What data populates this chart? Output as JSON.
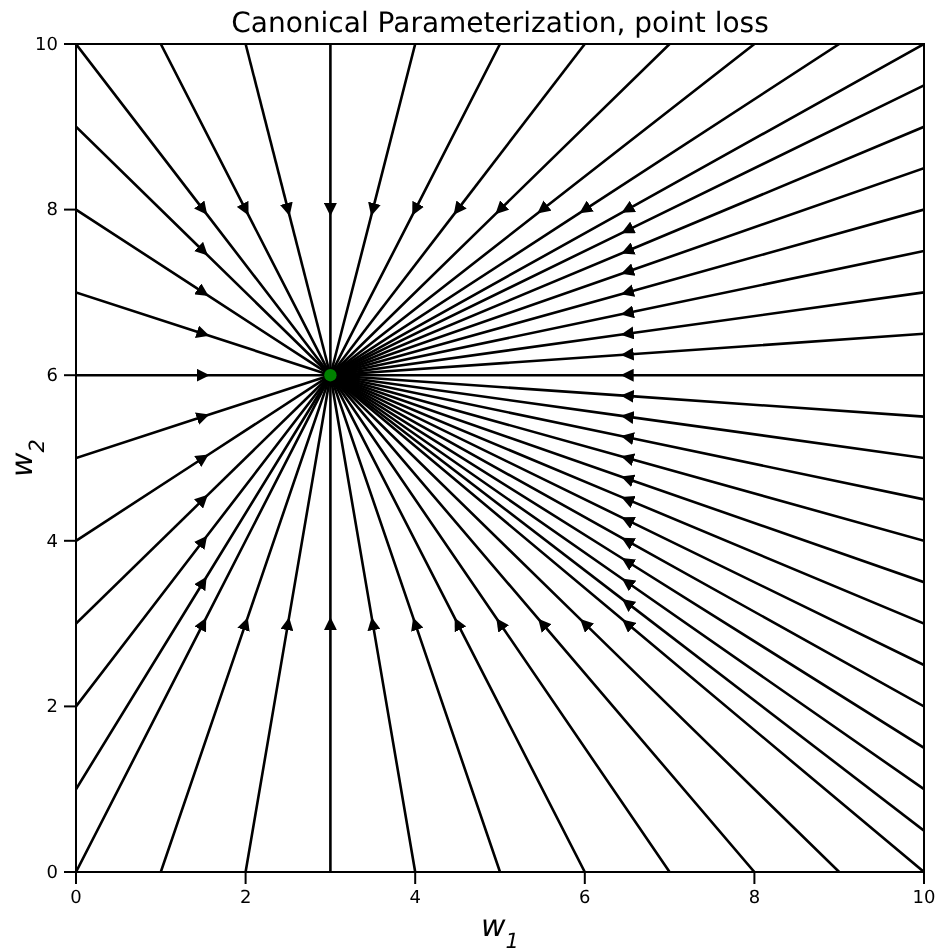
{
  "chart_data": {
    "type": "line",
    "title": "Canonical Parameterization, point loss",
    "xlabel": "w$_{1}$",
    "ylabel": "w$_{2}$",
    "xlim": [
      0,
      10
    ],
    "ylim": [
      0,
      10
    ],
    "xticks": [
      0,
      2,
      4,
      6,
      8,
      10
    ],
    "yticks": [
      0,
      2,
      4,
      6,
      8,
      10
    ],
    "grid": false,
    "line_style": "solid",
    "series": [
      {
        "x": [
          0,
          1.5,
          3
        ],
        "values": [
          0,
          3,
          6
        ],
        "color": "#000000"
      },
      {
        "x": [
          1,
          2,
          3
        ],
        "values": [
          0,
          3,
          6
        ],
        "color": "#000000"
      },
      {
        "x": [
          2,
          2.5,
          3
        ],
        "values": [
          0,
          3,
          6
        ],
        "color": "#000000"
      },
      {
        "x": [
          3,
          3,
          3
        ],
        "values": [
          0,
          3,
          6
        ],
        "color": "#000000"
      },
      {
        "x": [
          4,
          3.5,
          3
        ],
        "values": [
          0,
          3,
          6
        ],
        "color": "#000000"
      },
      {
        "x": [
          5,
          4,
          3
        ],
        "values": [
          0,
          3,
          6
        ],
        "color": "#000000"
      },
      {
        "x": [
          6,
          4.5,
          3
        ],
        "values": [
          0,
          3,
          6
        ],
        "color": "#000000"
      },
      {
        "x": [
          7,
          5,
          3
        ],
        "values": [
          0,
          3,
          6
        ],
        "color": "#000000"
      },
      {
        "x": [
          8,
          5.5,
          3
        ],
        "values": [
          0,
          3,
          6
        ],
        "color": "#000000"
      },
      {
        "x": [
          9,
          6,
          3
        ],
        "values": [
          0,
          3,
          6
        ],
        "color": "#000000"
      },
      {
        "x": [
          10,
          6.5,
          3
        ],
        "values": [
          0,
          3,
          6
        ],
        "color": "#000000"
      },
      {
        "x": [
          0,
          1.5,
          3
        ],
        "values": [
          10,
          8,
          6
        ],
        "color": "#000000"
      },
      {
        "x": [
          1,
          2,
          3
        ],
        "values": [
          10,
          8,
          6
        ],
        "color": "#000000"
      },
      {
        "x": [
          2,
          2.5,
          3
        ],
        "values": [
          10,
          8,
          6
        ],
        "color": "#000000"
      },
      {
        "x": [
          3,
          3,
          3
        ],
        "values": [
          10,
          8,
          6
        ],
        "color": "#000000"
      },
      {
        "x": [
          4,
          3.5,
          3
        ],
        "values": [
          10,
          8,
          6
        ],
        "color": "#000000"
      },
      {
        "x": [
          5,
          4,
          3
        ],
        "values": [
          10,
          8,
          6
        ],
        "color": "#000000"
      },
      {
        "x": [
          6,
          4.5,
          3
        ],
        "values": [
          10,
          8,
          6
        ],
        "color": "#000000"
      },
      {
        "x": [
          7,
          5,
          3
        ],
        "values": [
          10,
          8,
          6
        ],
        "color": "#000000"
      },
      {
        "x": [
          8,
          5.5,
          3
        ],
        "values": [
          10,
          8,
          6
        ],
        "color": "#000000"
      },
      {
        "x": [
          9,
          6,
          3
        ],
        "values": [
          10,
          8,
          6
        ],
        "color": "#000000"
      },
      {
        "x": [
          10,
          6.5,
          3
        ],
        "values": [
          10,
          8,
          6
        ],
        "color": "#000000"
      },
      {
        "x": [
          0,
          1.5,
          3
        ],
        "values": [
          1,
          3.5,
          6
        ],
        "color": "#000000"
      },
      {
        "x": [
          0,
          1.5,
          3
        ],
        "values": [
          2,
          4,
          6
        ],
        "color": "#000000"
      },
      {
        "x": [
          0,
          1.5,
          3
        ],
        "values": [
          3,
          4.5,
          6
        ],
        "color": "#000000"
      },
      {
        "x": [
          0,
          1.5,
          3
        ],
        "values": [
          4,
          5,
          6
        ],
        "color": "#000000"
      },
      {
        "x": [
          0,
          1.5,
          3
        ],
        "values": [
          5,
          5.5,
          6
        ],
        "color": "#000000"
      },
      {
        "x": [
          0,
          1.5,
          3
        ],
        "values": [
          6,
          6,
          6
        ],
        "color": "#000000"
      },
      {
        "x": [
          0,
          1.5,
          3
        ],
        "values": [
          7,
          6.5,
          6
        ],
        "color": "#000000"
      },
      {
        "x": [
          0,
          1.5,
          3
        ],
        "values": [
          8,
          7,
          6
        ],
        "color": "#000000"
      },
      {
        "x": [
          0,
          1.5,
          3
        ],
        "values": [
          9,
          7.5,
          6
        ],
        "color": "#000000"
      },
      {
        "x": [
          10,
          6.5,
          3
        ],
        "values": [
          0.5,
          3.25,
          6
        ],
        "color": "#000000"
      },
      {
        "x": [
          10,
          6.5,
          3
        ],
        "values": [
          1,
          3.5,
          6
        ],
        "color": "#000000"
      },
      {
        "x": [
          10,
          6.5,
          3
        ],
        "values": [
          1.5,
          3.75,
          6
        ],
        "color": "#000000"
      },
      {
        "x": [
          10,
          6.5,
          3
        ],
        "values": [
          2,
          4,
          6
        ],
        "color": "#000000"
      },
      {
        "x": [
          10,
          6.5,
          3
        ],
        "values": [
          2.5,
          4.25,
          6
        ],
        "color": "#000000"
      },
      {
        "x": [
          10,
          6.5,
          3
        ],
        "values": [
          3,
          4.5,
          6
        ],
        "color": "#000000"
      },
      {
        "x": [
          10,
          6.5,
          3
        ],
        "values": [
          3.5,
          4.75,
          6
        ],
        "color": "#000000"
      },
      {
        "x": [
          10,
          6.5,
          3
        ],
        "values": [
          4,
          5,
          6
        ],
        "color": "#000000"
      },
      {
        "x": [
          10,
          6.5,
          3
        ],
        "values": [
          4.5,
          5.25,
          6
        ],
        "color": "#000000"
      },
      {
        "x": [
          10,
          6.5,
          3
        ],
        "values": [
          5,
          5.5,
          6
        ],
        "color": "#000000"
      },
      {
        "x": [
          10,
          6.5,
          3
        ],
        "values": [
          5.5,
          5.75,
          6
        ],
        "color": "#000000"
      },
      {
        "x": [
          10,
          6.5,
          3
        ],
        "values": [
          6,
          6,
          6
        ],
        "color": "#000000"
      },
      {
        "x": [
          10,
          6.5,
          3
        ],
        "values": [
          6.5,
          6.25,
          6
        ],
        "color": "#000000"
      },
      {
        "x": [
          10,
          6.5,
          3
        ],
        "values": [
          7,
          6.5,
          6
        ],
        "color": "#000000"
      },
      {
        "x": [
          10,
          6.5,
          3
        ],
        "values": [
          7.5,
          6.75,
          6
        ],
        "color": "#000000"
      },
      {
        "x": [
          10,
          6.5,
          3
        ],
        "values": [
          8,
          7,
          6
        ],
        "color": "#000000"
      },
      {
        "x": [
          10,
          6.5,
          3
        ],
        "values": [
          8.5,
          7.25,
          6
        ],
        "color": "#000000"
      },
      {
        "x": [
          10,
          6.5,
          3
        ],
        "values": [
          9,
          7.5,
          6
        ],
        "color": "#000000"
      },
      {
        "x": [
          10,
          6.5,
          3
        ],
        "values": [
          9.5,
          7.75,
          6
        ],
        "color": "#000000"
      },
      {
        "type": "scatter",
        "marker": "circle",
        "x": [
          3
        ],
        "values": [
          6
        ],
        "color": "#008000"
      }
    ]
  }
}
